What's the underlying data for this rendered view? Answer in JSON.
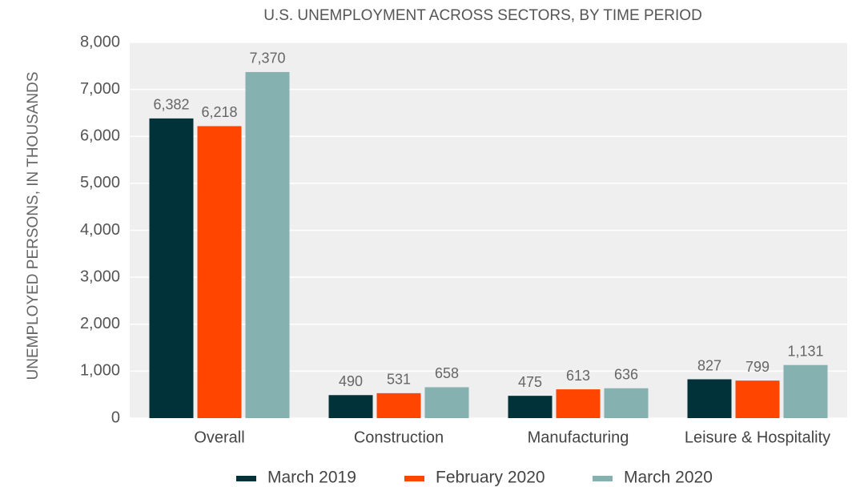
{
  "chart_data": {
    "type": "bar",
    "title": "U.S. UNEMPLOYMENT ACROSS SECTORS, BY TIME PERIOD",
    "y_label": "UNEMPLOYED PERSONS, IN THOUSANDS",
    "categories": [
      "Overall",
      "Construction",
      "Manufacturing",
      "Leisure & Hospitality"
    ],
    "series": [
      {
        "name": "March 2019",
        "color": "#01323a",
        "values": [
          6382,
          490,
          475,
          827
        ],
        "value_labels": [
          "6,382",
          "490",
          "475",
          "827"
        ]
      },
      {
        "name": "February 2020",
        "color": "#ff4500",
        "values": [
          6218,
          531,
          613,
          799
        ],
        "value_labels": [
          "6,218",
          "531",
          "613",
          "799"
        ]
      },
      {
        "name": "March 2020",
        "color": "#86b1b1",
        "values": [
          7370,
          658,
          636,
          1131
        ],
        "value_labels": [
          "7,370",
          "658",
          "636",
          "1,131"
        ]
      }
    ],
    "ylim": [
      0,
      8000
    ],
    "yticks": [
      0,
      {
        "value": 1000,
        "label": "1,000"
      },
      {
        "value": 2000,
        "label": "2,000"
      },
      {
        "value": 3000,
        "label": "3,000"
      },
      {
        "value": 4000,
        "label": "4,000"
      },
      {
        "value": 5000,
        "label": "5,000"
      },
      {
        "value": 6000,
        "label": "6,000"
      },
      {
        "value": 7000,
        "label": "7,000"
      },
      {
        "value": 8000,
        "label": "8,000"
      }
    ],
    "grid": true,
    "legend": "bottom"
  }
}
